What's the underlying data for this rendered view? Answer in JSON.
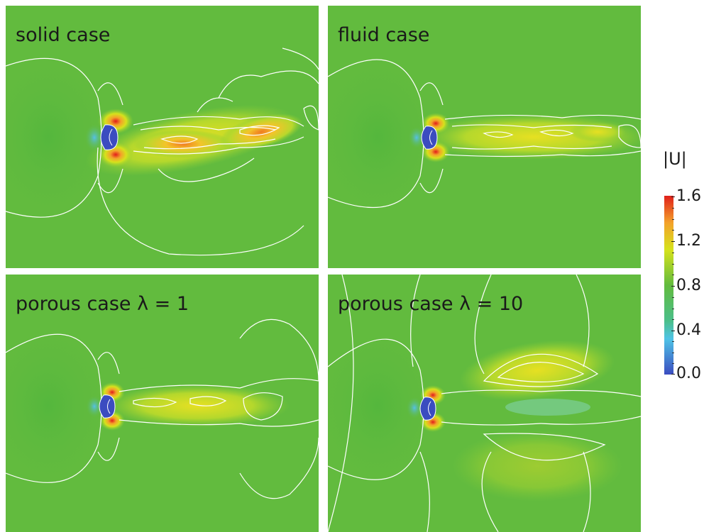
{
  "panels": [
    {
      "label": "solid case"
    },
    {
      "label": "fluid case"
    },
    {
      "label": "porous case λ = 1"
    },
    {
      "label": "porous case λ = 10"
    }
  ],
  "colorbar": {
    "title": "|U|",
    "ticks": [
      "1.6",
      "1.2",
      "0.8",
      "0.4",
      "0.0"
    ],
    "range": [
      0.0,
      1.6
    ],
    "colors": [
      "#3b4cc0",
      "#4fc3e6",
      "#62bb3e",
      "#d6e21c",
      "#f3a12a",
      "#e0201b"
    ]
  }
}
